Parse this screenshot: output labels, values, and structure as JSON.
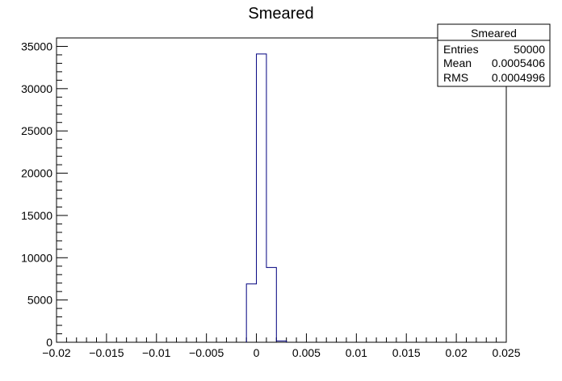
{
  "chart_data": {
    "type": "bar",
    "title": "Smeared",
    "xlabel": "",
    "ylabel": "",
    "xlim": [
      -0.02,
      0.025
    ],
    "ylim": [
      0,
      36000
    ],
    "bin_width": 0.001,
    "bins": [
      {
        "x_low": -0.001,
        "x_high": 0.0,
        "value": 6900
      },
      {
        "x_low": 0.0,
        "x_high": 0.001,
        "value": 34100
      },
      {
        "x_low": 0.001,
        "x_high": 0.002,
        "value": 8850
      },
      {
        "x_low": 0.002,
        "x_high": 0.003,
        "value": 150
      }
    ],
    "x_ticks": [
      "-0.02",
      "-0.015",
      "-0.01",
      "-0.005",
      "0",
      "0.005",
      "0.01",
      "0.015",
      "0.02",
      "0.025"
    ],
    "x_tick_values": [
      -0.02,
      -0.015,
      -0.01,
      -0.005,
      0,
      0.005,
      0.01,
      0.015,
      0.02,
      0.025
    ],
    "y_ticks": [
      "0",
      "5000",
      "10000",
      "15000",
      "20000",
      "25000",
      "30000",
      "35000"
    ],
    "y_tick_values": [
      0,
      5000,
      10000,
      15000,
      20000,
      25000,
      30000,
      35000
    ],
    "line_color": "#00007f",
    "grid": false,
    "stats_box": {
      "placement": "top-right",
      "title": "Smeared",
      "rows": [
        {
          "label": "Entries",
          "value": "50000"
        },
        {
          "label": "Mean",
          "value": "0.0005406"
        },
        {
          "label": "RMS",
          "value": "0.0004996"
        }
      ]
    }
  }
}
